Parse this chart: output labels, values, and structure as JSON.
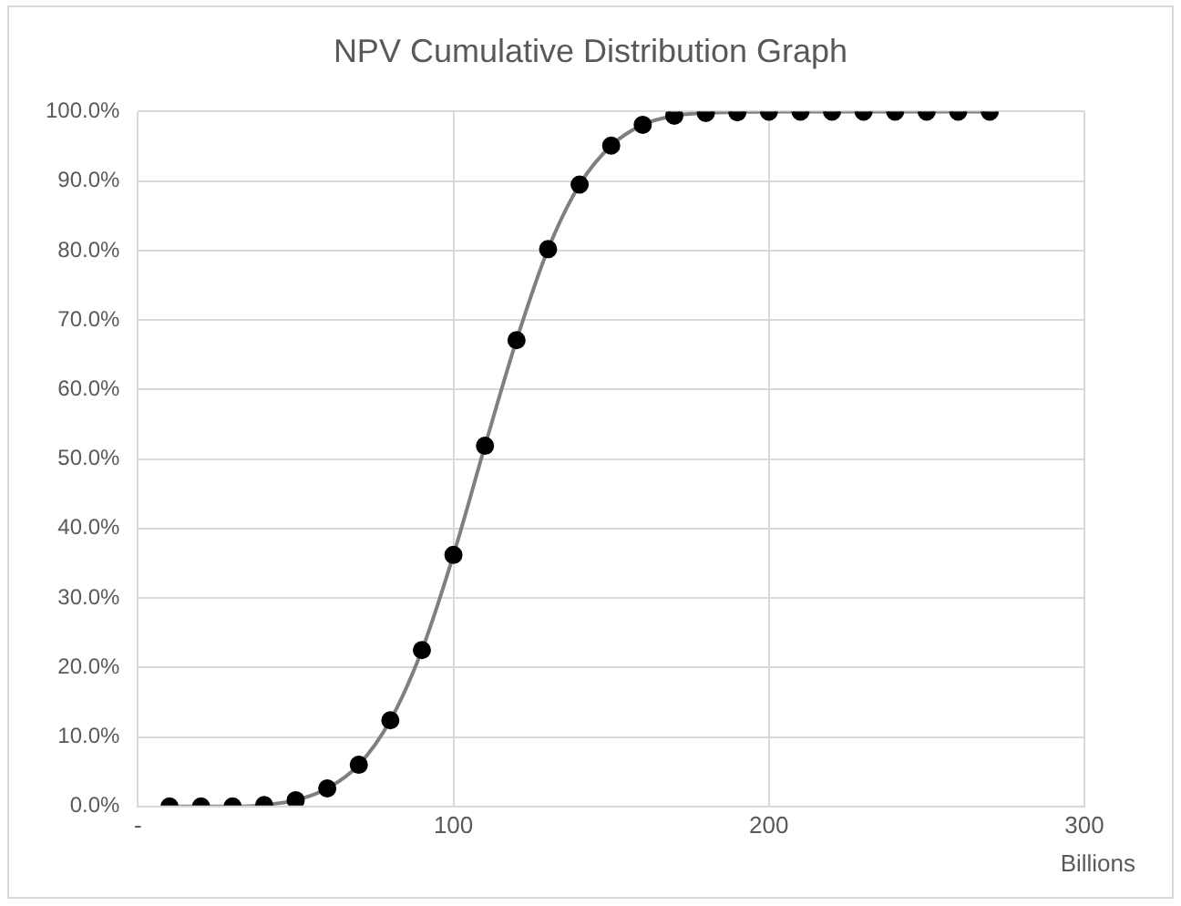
{
  "chart_data": {
    "type": "line",
    "title": "NPV Cumulative Distribution Graph",
    "xlabel": "Billions",
    "x": [
      10,
      20,
      30,
      40,
      50,
      60,
      70,
      80,
      90,
      100,
      110,
      120,
      130,
      140,
      150,
      160,
      170,
      180,
      190,
      200,
      210,
      220,
      230,
      240,
      250,
      260,
      270
    ],
    "series": [
      {
        "color": "#7f7f7f",
        "values": [
          0,
          0,
          0,
          0.2,
          0.9,
          2.6,
          6.0,
          12.4,
          22.5,
          36.2,
          51.9,
          67.1,
          80.2,
          89.5,
          95.1,
          98.1,
          99.4,
          99.8,
          99.9,
          100,
          100,
          100,
          100,
          100,
          100,
          100,
          100
        ]
      }
    ],
    "xlim": [
      0,
      300
    ],
    "xticks": [
      {
        "value": 0,
        "label": "-"
      },
      100,
      200,
      300
    ],
    "ylim": [
      0,
      100
    ],
    "yticks": [
      {
        "value": 0,
        "label": "0.0%"
      },
      {
        "value": 10,
        "label": "10.0%"
      },
      {
        "value": 20,
        "label": "20.0%"
      },
      {
        "value": 30,
        "label": "30.0%"
      },
      {
        "value": 40,
        "label": "40.0%"
      },
      {
        "value": 50,
        "label": "50.0%"
      },
      {
        "value": 60,
        "label": "60.0%"
      },
      {
        "value": 70,
        "label": "70.0%"
      },
      {
        "value": 80,
        "label": "80.0%"
      },
      {
        "value": 90,
        "label": "90.0%"
      },
      {
        "value": 100,
        "label": "100.0%"
      }
    ],
    "grid": true,
    "legend": false,
    "marker": "circle",
    "line_style": "solid"
  }
}
